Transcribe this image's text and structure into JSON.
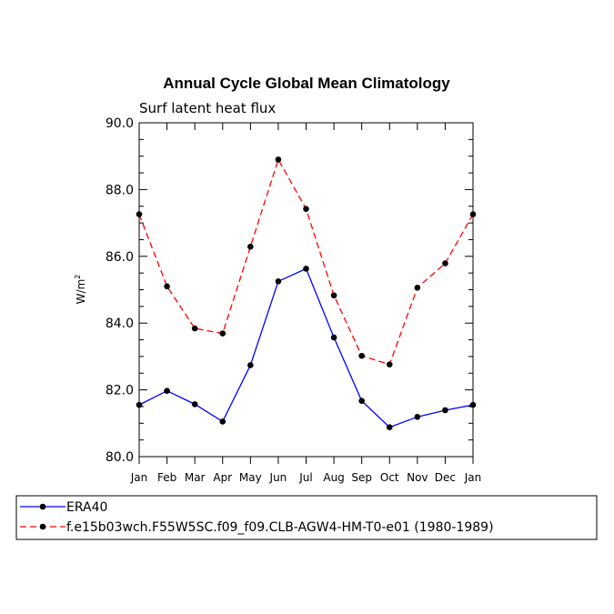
{
  "chart_data": {
    "type": "line",
    "title": "Annual Cycle Global Mean Climatology",
    "subtitle": "Surf latent heat flux",
    "ylabel": "W/m",
    "ylabel_superscript": "2",
    "xlabel": "",
    "ylim": [
      80.0,
      90.0
    ],
    "y_ticks": [
      "80.0",
      "82.0",
      "84.0",
      "86.0",
      "88.0",
      "90.0"
    ],
    "categories": [
      "Jan",
      "Feb",
      "Mar",
      "Apr",
      "May",
      "Jun",
      "Jul",
      "Aug",
      "Sep",
      "Oct",
      "Nov",
      "Dec",
      "Jan"
    ],
    "grid": false,
    "legend_position": "bottom-left",
    "series": [
      {
        "name": "ERA40",
        "color": "#0000ff",
        "dash": "solid",
        "values": [
          81.55,
          81.97,
          81.57,
          81.05,
          82.74,
          85.25,
          85.63,
          83.57,
          81.67,
          80.88,
          81.19,
          81.39,
          81.55
        ]
      },
      {
        "name": "f.e15b03wch.F55W5SC.f09_f09.CLB-AGW4-HM-T0-e01 (1980-1989)",
        "color": "#ff0000",
        "dash": "dashed",
        "values": [
          87.26,
          85.1,
          83.84,
          83.69,
          86.29,
          88.9,
          87.42,
          84.83,
          83.02,
          82.76,
          85.06,
          85.79,
          87.26
        ]
      }
    ]
  }
}
